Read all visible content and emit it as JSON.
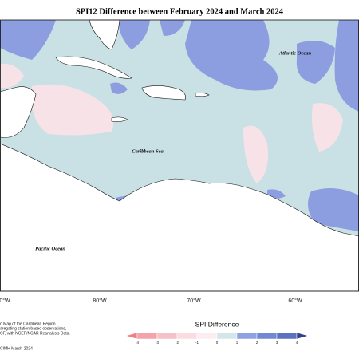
{
  "header": {
    "title": "SPI12 Difference between February 2024 and March 2024"
  },
  "map": {
    "labels": [
      "Atlantic Ocean",
      "Caribbean Sea",
      "Pacific Ocean"
    ],
    "longitudes": [
      "0°W",
      "80°W",
      "70°W",
      "60°W"
    ]
  },
  "legend": {
    "title": "SPI Difference",
    "ticks": [
      -4,
      -3,
      -2,
      -1,
      0,
      1,
      2,
      3,
      4
    ],
    "colors": [
      "#ee7f86",
      "#f3a3ab",
      "#f6c2c9",
      "#f9dde2",
      "#fbeef1",
      "#d3e6ea",
      "#8fa1e1",
      "#7189d3",
      "#5a72c0",
      "#343f8e"
    ]
  },
  "footer": {
    "notes": [
      "n Map of the Caribbean Region",
      "aregating station based observations,",
      "CF, with NCEP/NCAR Reanalysis Data."
    ],
    "credit": "CIMH March-2024"
  }
}
